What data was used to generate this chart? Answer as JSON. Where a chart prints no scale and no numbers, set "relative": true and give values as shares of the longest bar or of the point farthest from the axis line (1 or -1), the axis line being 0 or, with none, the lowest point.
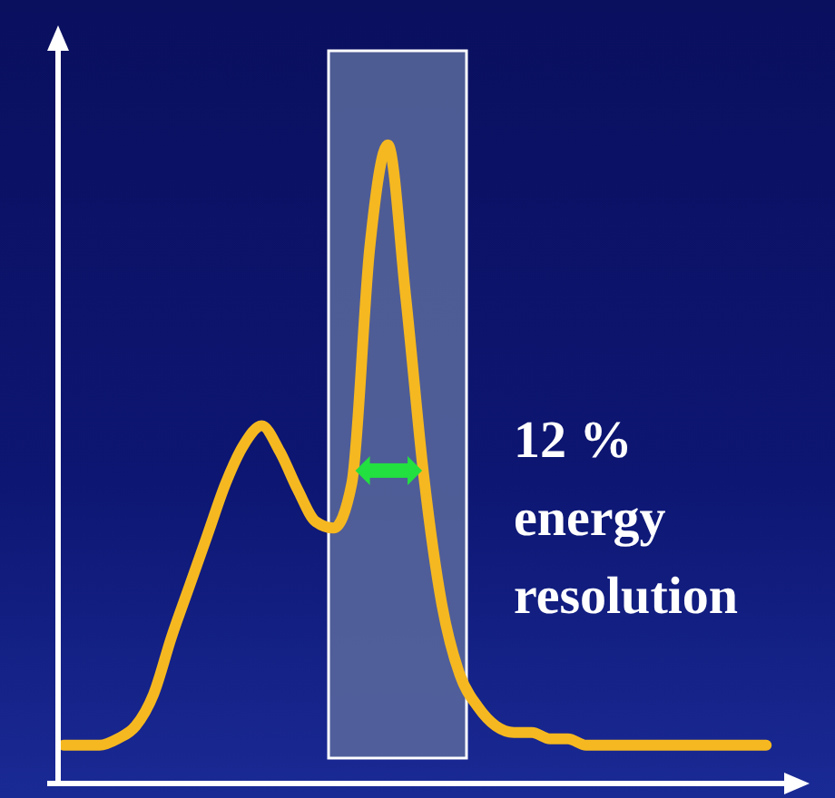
{
  "chart_data": {
    "type": "line",
    "relative": true,
    "grid": false,
    "legend": false,
    "marker": "none",
    "line_style": "solid",
    "categories": [
      null,
      null,
      null,
      null,
      null,
      null,
      null,
      null,
      null,
      null,
      null,
      null,
      null,
      null,
      null,
      null,
      null,
      null,
      null,
      null,
      null,
      null,
      null,
      null,
      null,
      null,
      null,
      null,
      null,
      null,
      null,
      null,
      null,
      null,
      null,
      null,
      null,
      null,
      null,
      null
    ],
    "series": [
      {
        "color": "#f5b820",
        "values": [
          0.06,
          0.06,
          0.06,
          0.07,
          0.09,
          0.14,
          0.23,
          0.31,
          0.39,
          0.47,
          0.53,
          0.56,
          0.52,
          0.46,
          0.41,
          0.4,
          0.47,
          0.84,
          1,
          0.76,
          0.48,
          0.28,
          0.17,
          0.12,
          0.09,
          0.08,
          0.08,
          0.07,
          0.07,
          0.06,
          0.06,
          0.06,
          0.06,
          0.06,
          0.06,
          0.06,
          0.06,
          0.06,
          0.06,
          0.06
        ]
      }
    ],
    "annotations": [
      "12 % energy resolution"
    ]
  }
}
